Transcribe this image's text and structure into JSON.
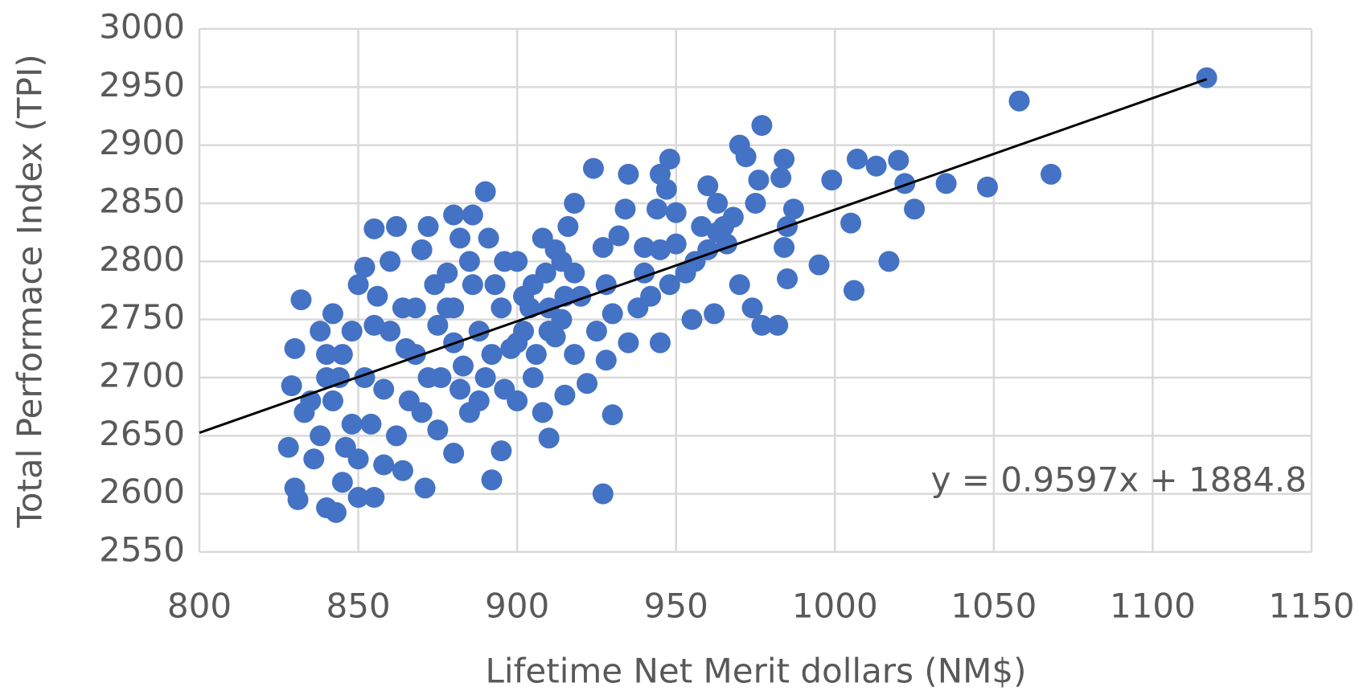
{
  "chart_data": {
    "type": "scatter",
    "xlabel": "Lifetime Net Merit dollars (NM$)",
    "ylabel": "Total Performace Index (TPI)",
    "color": "#4472c4",
    "xlim": [
      800,
      1150
    ],
    "xticks": [
      800,
      850,
      900,
      950,
      1000,
      1050,
      1100,
      1150
    ],
    "ylim": [
      2550,
      3000
    ],
    "yticks": [
      2550,
      2600,
      2650,
      2700,
      2750,
      2800,
      2850,
      2900,
      2950,
      3000
    ],
    "grid": true,
    "trendline": {
      "label": "y = 0.9597x + 1884.8",
      "slope": 0.9597,
      "intercept": 1884.8,
      "color": "#000000"
    },
    "x": [
      1117,
      1058,
      1068,
      1048,
      1035,
      1025,
      1022,
      1020,
      1013,
      1007,
      1005,
      1006,
      1017,
      999,
      995,
      987,
      984,
      983,
      985,
      984,
      985,
      982,
      977,
      976,
      975,
      972,
      970,
      977,
      974,
      970,
      962,
      960,
      963,
      965,
      968,
      955,
      950,
      948,
      947,
      945,
      944,
      945,
      940,
      935,
      934,
      932,
      930,
      927,
      928,
      927,
      924,
      922,
      918,
      915,
      910,
      908,
      905,
      900,
      895,
      892,
      890,
      891,
      886,
      880,
      883,
      885,
      880,
      875,
      872,
      871,
      862,
      855,
      855,
      850,
      843,
      840,
      845,
      832,
      830,
      831,
      828,
      829,
      830,
      835,
      838,
      840,
      842,
      845,
      848,
      850,
      852,
      855,
      858,
      860,
      862,
      865,
      868,
      870,
      872,
      875,
      878,
      880,
      882,
      885,
      888,
      890,
      893,
      895,
      898,
      900,
      902,
      905,
      908,
      910,
      912,
      914,
      916,
      918,
      920,
      925,
      928,
      930,
      935,
      938,
      940,
      942,
      945,
      948,
      950,
      953,
      956,
      958,
      960,
      963,
      966,
      833,
      836,
      838,
      842,
      846,
      850,
      854,
      858,
      864,
      866,
      870,
      876,
      880,
      888,
      892,
      896,
      900,
      904,
      906,
      909,
      912,
      915,
      918,
      840,
      844,
      848,
      852,
      856,
      860,
      864,
      868,
      874,
      878,
      882,
      886,
      896,
      902,
      910,
      914
    ],
    "values": [
      2958,
      2938,
      2875,
      2864,
      2867,
      2845,
      2867,
      2887,
      2882,
      2888,
      2833,
      2775,
      2800,
      2870,
      2797,
      2845,
      2888,
      2872,
      2830,
      2812,
      2785,
      2745,
      2917,
      2870,
      2850,
      2890,
      2900,
      2745,
      2760,
      2780,
      2755,
      2865,
      2850,
      2830,
      2838,
      2750,
      2842,
      2888,
      2862,
      2875,
      2845,
      2730,
      2812,
      2875,
      2845,
      2822,
      2668,
      2600,
      2715,
      2812,
      2880,
      2695,
      2850,
      2685,
      2648,
      2670,
      2700,
      2680,
      2637,
      2612,
      2860,
      2820,
      2840,
      2840,
      2710,
      2670,
      2635,
      2655,
      2830,
      2605,
      2830,
      2828,
      2597,
      2597,
      2584,
      2588,
      2610,
      2767,
      2605,
      2595,
      2640,
      2693,
      2725,
      2680,
      2740,
      2700,
      2755,
      2720,
      2660,
      2780,
      2795,
      2745,
      2690,
      2800,
      2650,
      2725,
      2760,
      2810,
      2700,
      2745,
      2790,
      2760,
      2690,
      2800,
      2740,
      2700,
      2780,
      2760,
      2725,
      2800,
      2740,
      2780,
      2820,
      2760,
      2735,
      2800,
      2830,
      2720,
      2770,
      2740,
      2780,
      2755,
      2730,
      2760,
      2790,
      2770,
      2810,
      2780,
      2815,
      2790,
      2800,
      2830,
      2810,
      2825,
      2815,
      2670,
      2630,
      2650,
      2680,
      2640,
      2630,
      2660,
      2625,
      2620,
      2680,
      2670,
      2700,
      2730,
      2680,
      2720,
      2690,
      2730,
      2760,
      2720,
      2790,
      2810,
      2770,
      2790,
      2720,
      2700,
      2740,
      2700,
      2770,
      2740,
      2760,
      2720,
      2780,
      2760,
      2820,
      2780,
      2800,
      2770,
      2740,
      2750
    ]
  }
}
